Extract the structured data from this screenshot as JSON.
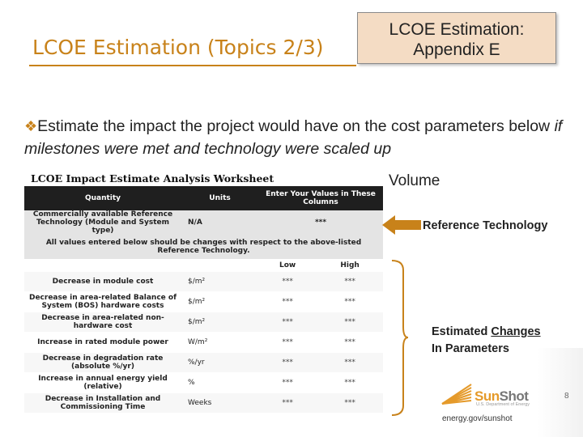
{
  "header": {
    "title": "LCOE Estimation (Topics 2/3)",
    "appendix_line1": "LCOE Estimation:",
    "appendix_line2": "Appendix E"
  },
  "body": {
    "bullet_text_1": "Estimate the impact the project would have on the cost parameters below ",
    "bullet_text_italic": "if milestones were met and technology were scaled up"
  },
  "worksheet": {
    "title": "LCOE Impact Estimate Analysis Worksheet",
    "header": {
      "quantity": "Quantity",
      "units": "Units",
      "values": "Enter Your Values in These Columns"
    },
    "reference_row": {
      "quantity": "Commercially available Reference Technology (Module and System type)",
      "units": "N/A",
      "value": "***"
    },
    "note": "All values entered below should be changes with respect to the above-listed Reference Technology.",
    "low_label": "Low",
    "high_label": "High",
    "rows": [
      {
        "quantity": "Decrease in module cost",
        "units": "$/m²",
        "low": "***",
        "high": "***"
      },
      {
        "quantity": "Decrease in area-related Balance of System (BOS) hardware costs",
        "units": "$/m²",
        "low": "***",
        "high": "***"
      },
      {
        "quantity": "Decrease in area-related non-hardware cost",
        "units": "$/m²",
        "low": "***",
        "high": "***"
      },
      {
        "quantity": "Increase in rated module power",
        "units": "W/m²",
        "low": "***",
        "high": "***"
      },
      {
        "quantity": "Decrease in degradation rate (absolute %/yr)",
        "units": "%/yr",
        "low": "***",
        "high": "***"
      },
      {
        "quantity": "Increase in annual energy yield (relative)",
        "units": "%",
        "low": "***",
        "high": "***"
      },
      {
        "quantity": "Decrease in Installation and Commissioning Time",
        "units": "Weeks",
        "low": "***",
        "high": "***"
      }
    ]
  },
  "annotations": {
    "volume": "Volume",
    "reference_technology": "Reference Technology",
    "estimated_changes_1": "Estimated ",
    "estimated_changes_underlined": "Changes",
    "estimated_changes_2": "In Parameters"
  },
  "footer": {
    "sunshot_sun": "Sun",
    "sunshot_shot": "Shot",
    "sunshot_sub": "U.S. Department of Energy",
    "url": "energy.gov/sunshot",
    "page_number": "8"
  },
  "colors": {
    "accent": "#c8821a",
    "appendix_bg": "#f4dcc4",
    "table_header": "#1f1f1f"
  }
}
